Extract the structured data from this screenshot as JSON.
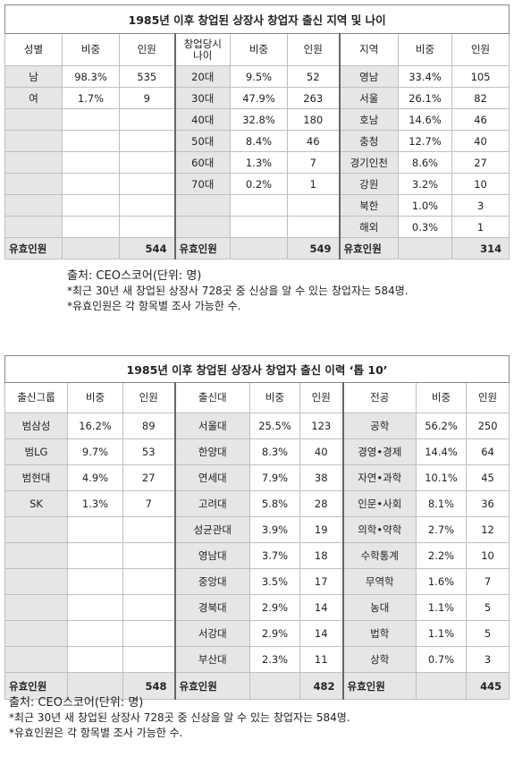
{
  "table1": {
    "title": "1985년 이후 창업된 상장사 창업자 출신 지역 및 나이",
    "headers": {
      "gender": "성별",
      "age": "창업당시\n나이",
      "region": "지역",
      "share": "비중",
      "count": "인원"
    },
    "gender_rows": [
      {
        "label": "남",
        "share": "98.3%",
        "count": "535"
      },
      {
        "label": "여",
        "share": "1.7%",
        "count": "9"
      }
    ],
    "age_rows": [
      {
        "label": "20대",
        "share": "9.5%",
        "count": "52"
      },
      {
        "label": "30대",
        "share": "47.9%",
        "count": "263"
      },
      {
        "label": "40대",
        "share": "32.8%",
        "count": "180"
      },
      {
        "label": "50대",
        "share": "8.4%",
        "count": "46"
      },
      {
        "label": "60대",
        "share": "1.3%",
        "count": "7"
      },
      {
        "label": "70대",
        "share": "0.2%",
        "count": "1"
      }
    ],
    "region_rows": [
      {
        "label": "영남",
        "share": "33.4%",
        "count": "105"
      },
      {
        "label": "서울",
        "share": "26.1%",
        "count": "82"
      },
      {
        "label": "호남",
        "share": "14.6%",
        "count": "46"
      },
      {
        "label": "충청",
        "share": "12.7%",
        "count": "40"
      },
      {
        "label": "경기인천",
        "share": "8.6%",
        "count": "27"
      },
      {
        "label": "강원",
        "share": "3.2%",
        "count": "10"
      },
      {
        "label": "북한",
        "share": "1.0%",
        "count": "3"
      },
      {
        "label": "해외",
        "share": "0.3%",
        "count": "1"
      }
    ],
    "total_label": "유효인원",
    "totals": {
      "gender": "544",
      "age": "549",
      "region": "314"
    }
  },
  "notes1": {
    "source": "출처: CEO스코어(단위: 명)",
    "line1": "*최근 30년 새 창업된 상장사 728곳 중 신상을 알 수 있는 창업자는 584명.",
    "line2": "*유효인원은 각 항목별 조사 가능한 수."
  },
  "table2": {
    "title": "1985년 이후 창업된 상장사 창업자 출신 이력 ‘톱 10’",
    "headers": {
      "group": "출신그룹",
      "school": "출신대",
      "major": "전공",
      "share": "비중",
      "count": "인원"
    },
    "group_rows": [
      {
        "label": "범삼성",
        "share": "16.2%",
        "count": "89"
      },
      {
        "label": "범LG",
        "share": "9.7%",
        "count": "53"
      },
      {
        "label": "범현대",
        "share": "4.9%",
        "count": "27"
      },
      {
        "label": "SK",
        "share": "1.3%",
        "count": "7"
      }
    ],
    "school_rows": [
      {
        "label": "서울대",
        "share": "25.5%",
        "count": "123"
      },
      {
        "label": "한양대",
        "share": "8.3%",
        "count": "40"
      },
      {
        "label": "연세대",
        "share": "7.9%",
        "count": "38"
      },
      {
        "label": "고려대",
        "share": "5.8%",
        "count": "28"
      },
      {
        "label": "성균관대",
        "share": "3.9%",
        "count": "19"
      },
      {
        "label": "영남대",
        "share": "3.7%",
        "count": "18"
      },
      {
        "label": "중앙대",
        "share": "3.5%",
        "count": "17"
      },
      {
        "label": "경북대",
        "share": "2.9%",
        "count": "14"
      },
      {
        "label": "서강대",
        "share": "2.9%",
        "count": "14"
      },
      {
        "label": "부산대",
        "share": "2.3%",
        "count": "11"
      }
    ],
    "major_rows": [
      {
        "label": "공학",
        "share": "56.2%",
        "count": "250"
      },
      {
        "label": "경영•경제",
        "share": "14.4%",
        "count": "64"
      },
      {
        "label": "자연•과학",
        "share": "10.1%",
        "count": "45"
      },
      {
        "label": "인문•사회",
        "share": "8.1%",
        "count": "36"
      },
      {
        "label": "의학•약학",
        "share": "2.7%",
        "count": "12"
      },
      {
        "label": "수학통계",
        "share": "2.2%",
        "count": "10"
      },
      {
        "label": "무역학",
        "share": "1.6%",
        "count": "7"
      },
      {
        "label": "농대",
        "share": "1.1%",
        "count": "5"
      },
      {
        "label": "법학",
        "share": "1.1%",
        "count": "5"
      },
      {
        "label": "상학",
        "share": "0.7%",
        "count": "3"
      }
    ],
    "total_label": "유효인원",
    "totals": {
      "group": "548",
      "school": "482",
      "major": "445"
    }
  },
  "notes2": {
    "source": "출처: CEO스코어(단위: 명)",
    "line1": "*최근 30년 새 창업된 상장사 728곳 중 신상을 알 수 있는 창업자는 584명.",
    "line2": "*유효인원은 각 항목별 조사 가능한 수."
  }
}
